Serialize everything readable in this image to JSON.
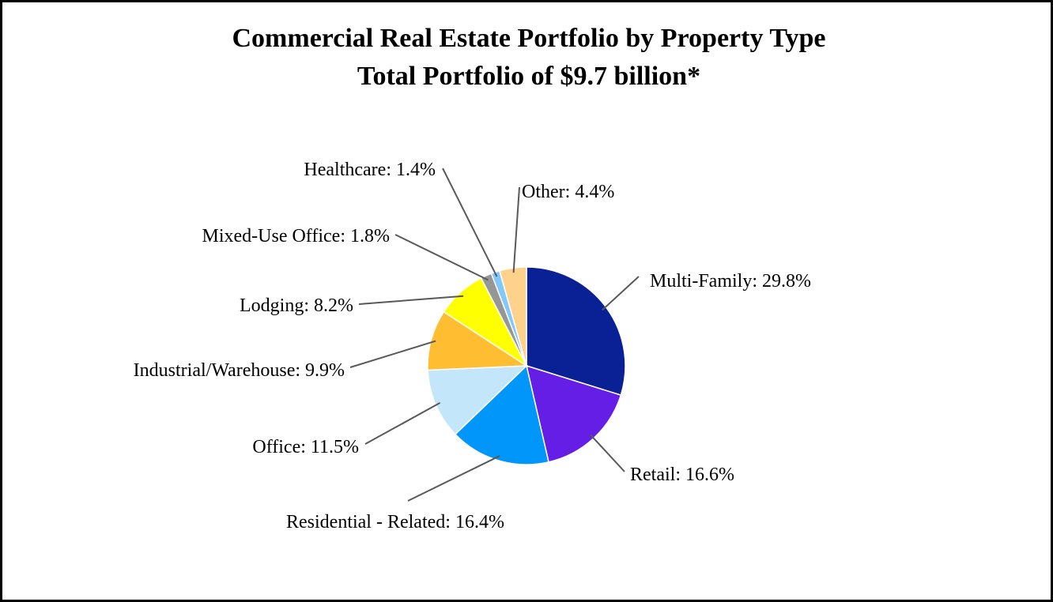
{
  "chart_data": {
    "type": "pie",
    "title": "Commercial Real Estate Portfolio by Property Type",
    "subtitle": "Total Portfolio of $9.7 billion*",
    "slices": [
      {
        "label": "Multi-Family: 29.8%",
        "value": 29.8,
        "color": "#0a2196"
      },
      {
        "label": "Retail: 16.6%",
        "value": 16.6,
        "color": "#641ee6"
      },
      {
        "label": "Residential - Related: 16.4%",
        "value": 16.4,
        "color": "#0096fa"
      },
      {
        "label": "Office: 11.5%",
        "value": 11.5,
        "color": "#c3e6fa"
      },
      {
        "label": "Industrial/Warehouse: 9.9%",
        "value": 9.9,
        "color": "#ffbe32"
      },
      {
        "label": "Lodging: 8.2%",
        "value": 8.2,
        "color": "#ffff00"
      },
      {
        "label": "Mixed-Use Office: 1.8%",
        "value": 1.8,
        "color": "#969696"
      },
      {
        "label": "Healthcare: 1.4%",
        "value": 1.4,
        "color": "#82c8fa"
      },
      {
        "label": "Other: 4.4%",
        "value": 4.4,
        "color": "#ffd28c"
      }
    ]
  }
}
